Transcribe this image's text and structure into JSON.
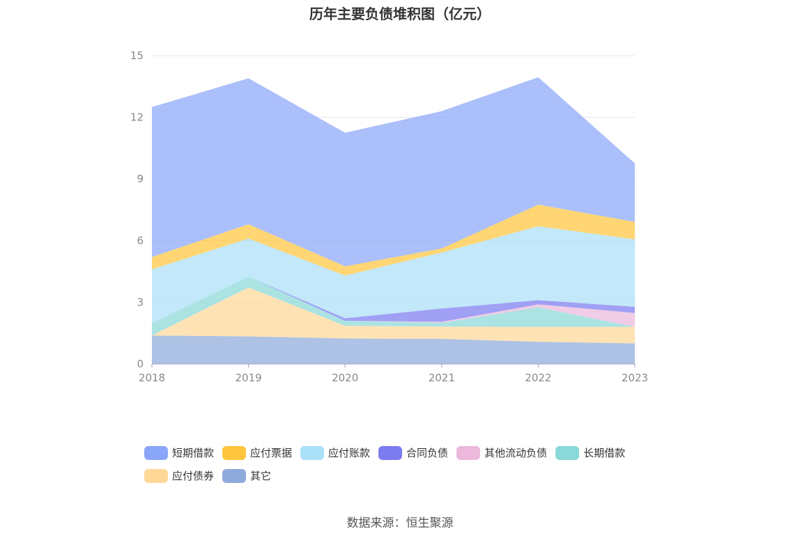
{
  "chart_data": {
    "type": "area",
    "stacked": true,
    "title": "历年主要负债堆积图（亿元）",
    "x": [
      "2018",
      "2019",
      "2020",
      "2021",
      "2022",
      "2023"
    ],
    "ylim": [
      0,
      15
    ],
    "yticks": [
      "0",
      "3",
      "6",
      "9",
      "12",
      "15"
    ],
    "grid": true,
    "legend_position": "bottom",
    "series": [
      {
        "name": "其它",
        "color": "#8eaadb",
        "values": [
          1.38,
          1.34,
          1.24,
          1.22,
          1.08,
          1.0
        ]
      },
      {
        "name": "应付债券",
        "color": "#ffd898",
        "values": [
          0.0,
          2.38,
          0.62,
          0.6,
          0.72,
          0.8
        ]
      },
      {
        "name": "长期借款",
        "color": "#8ad8d8",
        "values": [
          0.6,
          0.52,
          0.24,
          0.18,
          0.96,
          0.0
        ]
      },
      {
        "name": "其他流动负债",
        "color": "#ecb8dc",
        "values": [
          0.0,
          0.0,
          0.0,
          0.05,
          0.14,
          0.68
        ]
      },
      {
        "name": "合同负债",
        "color": "#7b7cf0",
        "values": [
          0.0,
          0.0,
          0.12,
          0.65,
          0.2,
          0.3
        ]
      },
      {
        "name": "应付账款",
        "color": "#aadff8",
        "values": [
          2.62,
          1.86,
          2.08,
          2.72,
          3.6,
          3.28
        ]
      },
      {
        "name": "应付票据",
        "color": "#ffc63d",
        "values": [
          0.6,
          0.7,
          0.45,
          0.2,
          1.05,
          0.85
        ]
      },
      {
        "name": "短期借款",
        "color": "#8aa6f8",
        "values": [
          7.3,
          7.1,
          6.5,
          6.68,
          6.2,
          2.85
        ]
      }
    ]
  },
  "legend": [
    {
      "label": "短期借款",
      "color": "#8aa6f8"
    },
    {
      "label": "应付票据",
      "color": "#ffc63d"
    },
    {
      "label": "应付账款",
      "color": "#aadff8"
    },
    {
      "label": "合同负债",
      "color": "#7b7cf0"
    },
    {
      "label": "其他流动负债",
      "color": "#ecb8dc"
    },
    {
      "label": "长期借款",
      "color": "#8ad8d8"
    },
    {
      "label": "应付债券",
      "color": "#ffd898"
    },
    {
      "label": "其它",
      "color": "#8eaadb"
    }
  ],
  "source": "数据来源：恒生聚源"
}
